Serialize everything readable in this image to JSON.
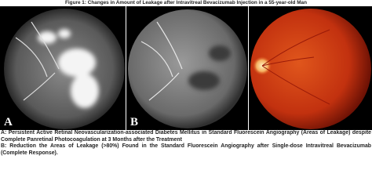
{
  "figure": {
    "title": "Figure 1: Changes in Amount of Leakage after Intravitreal Bevacizumab Injection in a 55-year-old Man",
    "panels": [
      {
        "label": "A"
      },
      {
        "label": "B"
      },
      {
        "label": null
      }
    ],
    "captions": [
      "A: Persistent Active Retinal Neovascularization-associated Diabetes Mellitus in Standard Fluorescein Angiography (Areas of Leakage) despite Complete Panretinal Photocoagulation at 3 Months after the Treatment",
      "B: Reduction the Areas of Leakage (>80%) Found in the Standard Fluorescein Angiography after Single-dose Intravitreal Bevacizumab (Complete Response)."
    ]
  }
}
